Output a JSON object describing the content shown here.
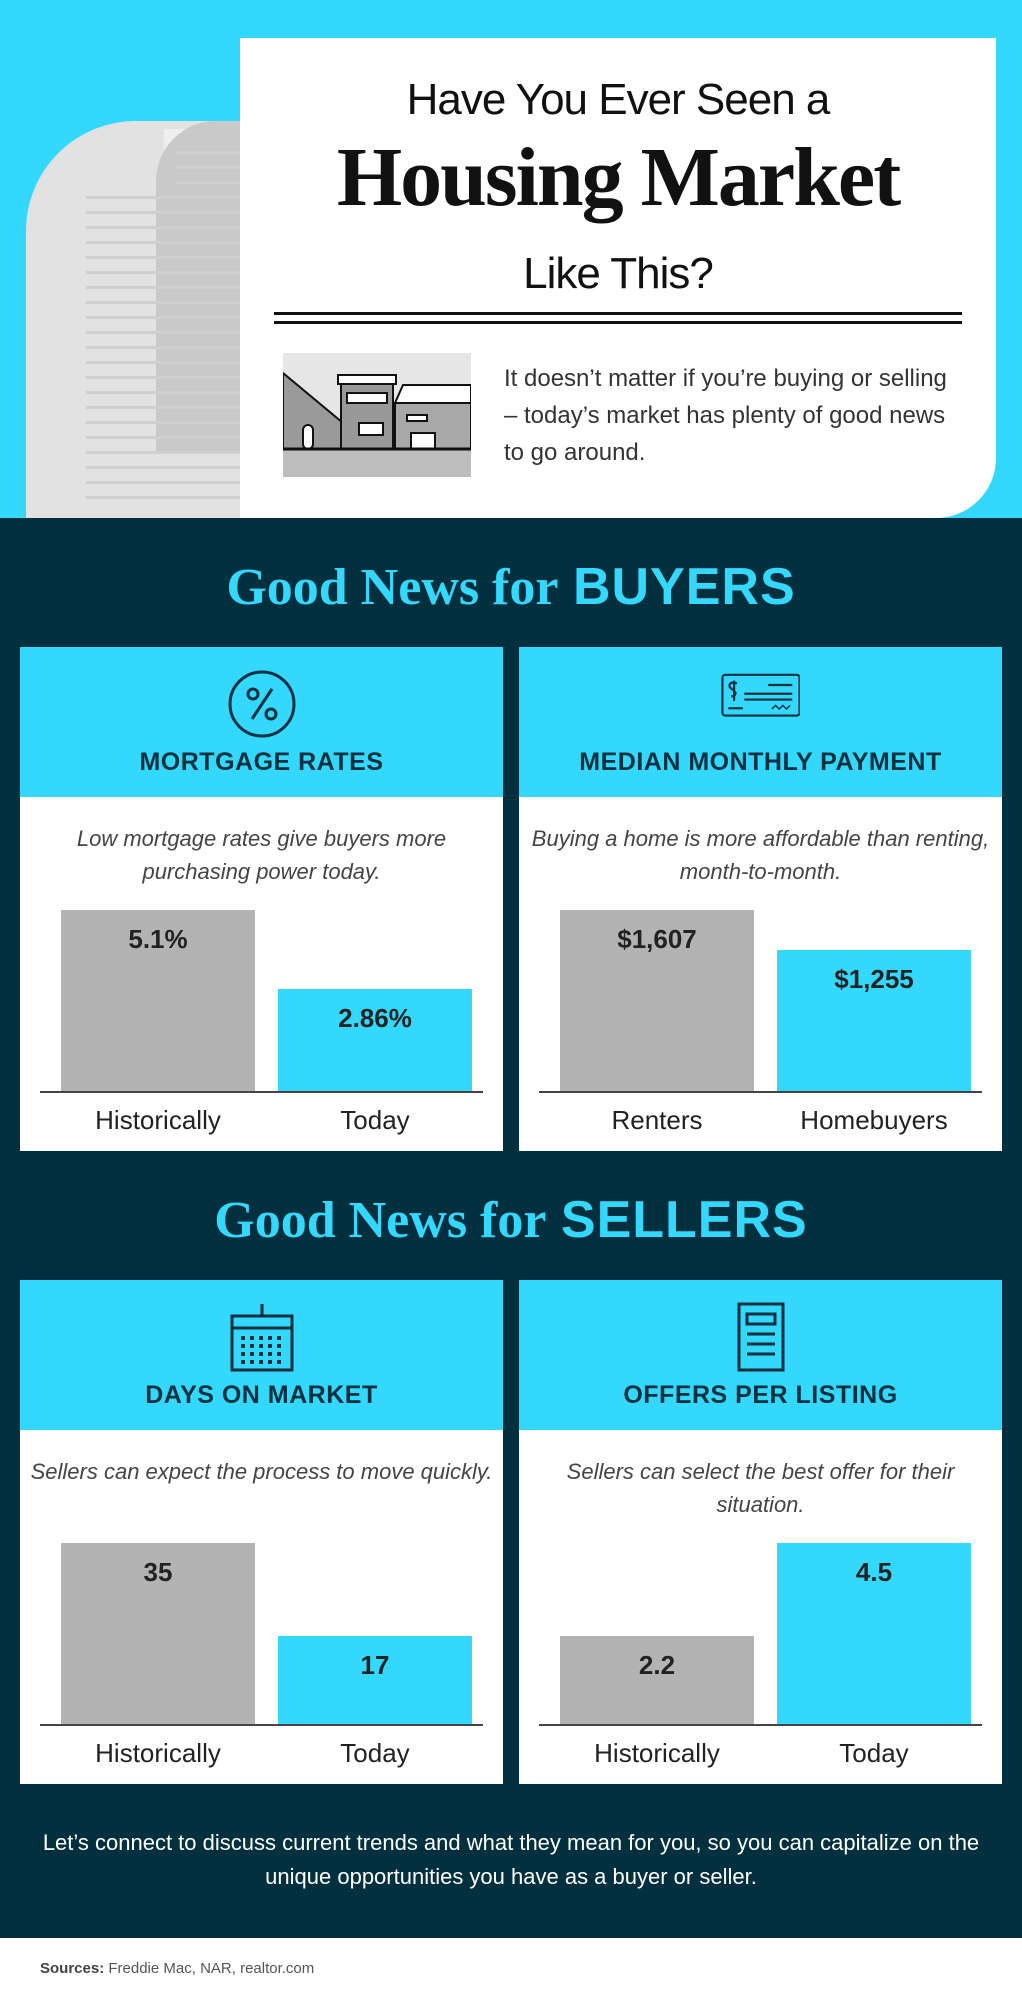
{
  "header": {
    "line1": "Have You Ever Seen a",
    "line2": "Housing Market",
    "line3": "Like This?",
    "intro": "It doesn’t matter if you’re buying or selling – today’s market has plenty of good news to go around."
  },
  "colors": {
    "accent": "#35d8fd",
    "dark": "#03303f",
    "gray": "#b3b3b3"
  },
  "buyers": {
    "title_script": "Good News for",
    "title_bold": "BUYERS"
  },
  "sellers": {
    "title_script": "Good News for",
    "title_bold": "SELLERS"
  },
  "chart_data": [
    {
      "type": "bar",
      "title": "MORTGAGE RATES",
      "icon": "percent-icon",
      "subtitle": "Low mortgage rates give buyers more purchasing power today.",
      "categories": [
        "Historically",
        "Today"
      ],
      "values": [
        5.1,
        2.86
      ],
      "labels": [
        "5.1%",
        "2.86%"
      ]
    },
    {
      "type": "bar",
      "title": "MEDIAN MONTHLY PAYMENT",
      "icon": "check-icon",
      "subtitle": "Buying a home is more affordable than renting, month-to-month.",
      "categories": [
        "Renters",
        "Homebuyers"
      ],
      "values": [
        1607,
        1255
      ],
      "labels": [
        "$1,607",
        "$1,255"
      ]
    },
    {
      "type": "bar",
      "title": "DAYS ON MARKET",
      "icon": "calendar-icon",
      "subtitle": "Sellers can expect the process to move quickly.",
      "categories": [
        "Historically",
        "Today"
      ],
      "values": [
        35,
        17
      ],
      "labels": [
        "35",
        "17"
      ]
    },
    {
      "type": "bar",
      "title": "OFFERS PER LISTING",
      "icon": "document-icon",
      "subtitle": "Sellers can select the best offer for their situation.",
      "categories": [
        "Historically",
        "Today"
      ],
      "values": [
        2.2,
        4.5
      ],
      "labels": [
        "2.2",
        "4.5"
      ]
    }
  ],
  "footer": {
    "cta": "Let’s connect to discuss current trends and what they mean for you, so you can capitalize on the unique opportunities you have as a buyer or seller.",
    "sources_label": "Sources:",
    "sources": "Freddie Mac, NAR, realtor.com"
  }
}
